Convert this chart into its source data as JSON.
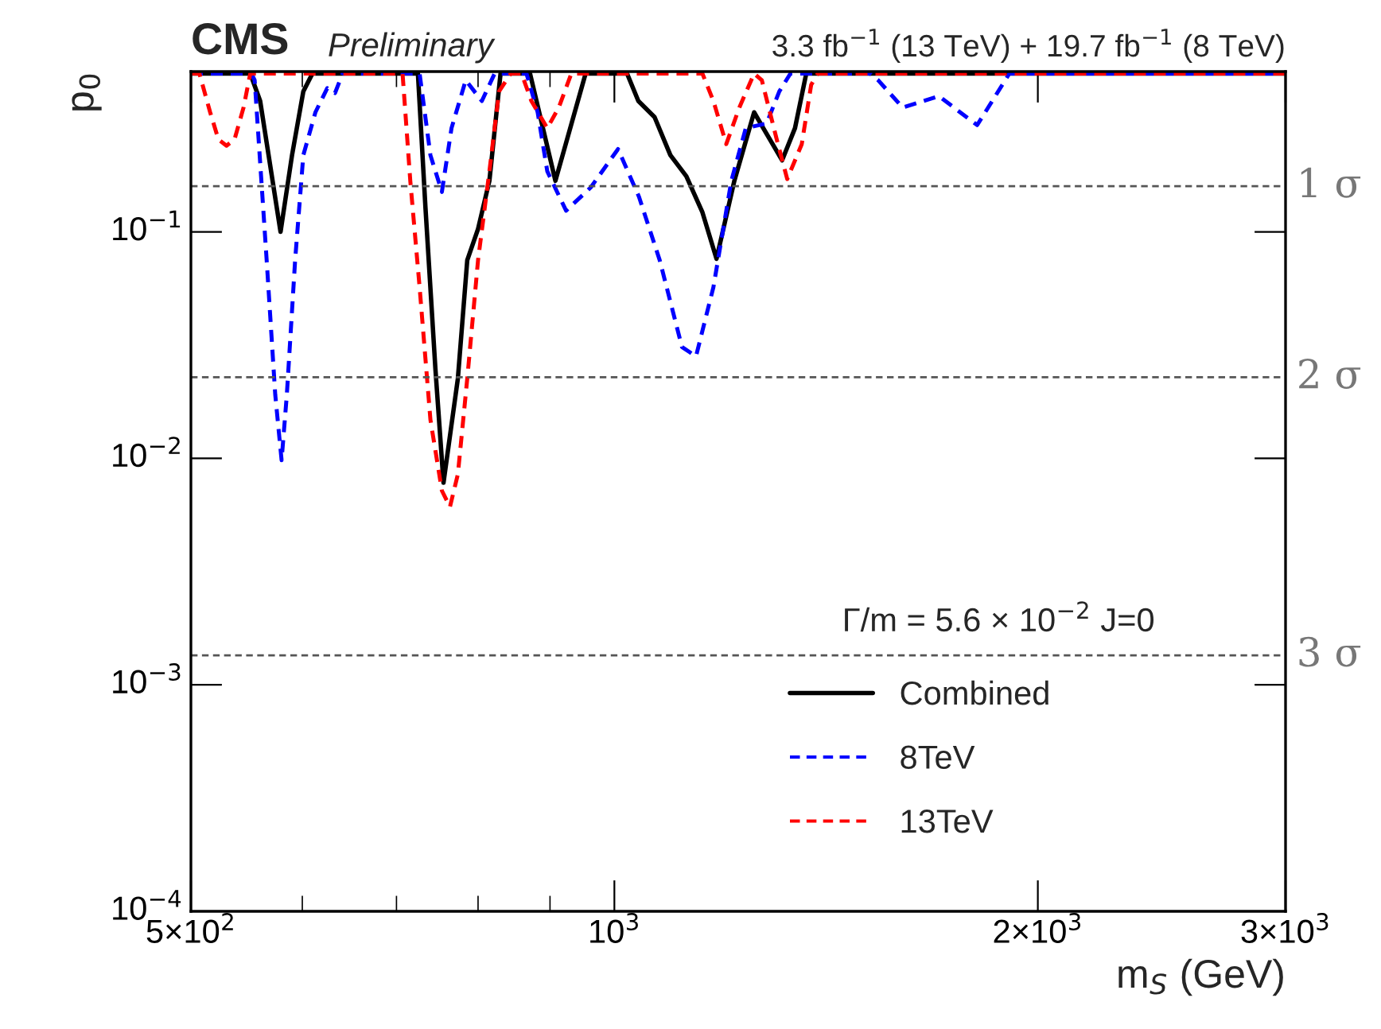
{
  "chart_data": {
    "type": "line",
    "xlabel": "m$_{S}$ (GeV)",
    "ylabel": "p$_{0}$",
    "annotations": [
      "CMS",
      "Preliminary",
      "3.3 fb$^{−1}$ (13 TeV) + 19.7 fb$^{−1}$ (8 TeV)",
      "Γ/m = 5.6 × 10$^{−2}$ J=0"
    ],
    "log": "xy",
    "xlim": [
      500,
      3000
    ],
    "ylim": [
      0.0001,
      0.51
    ],
    "xticks": [
      {
        "value": 500,
        "label": "5×10$^{2}$"
      },
      {
        "value": 1000,
        "label": "10$^{3}$"
      },
      {
        "value": 2000,
        "label": "2×10$^{3}$"
      },
      {
        "value": 3000,
        "label": "3×10$^{3}$"
      }
    ],
    "yticks": [
      {
        "value": 0.0001,
        "label": "10$^{−4}$"
      },
      {
        "value": 0.001,
        "label": "10$^{−3}$"
      },
      {
        "value": 0.01,
        "label": "10$^{−2}$"
      },
      {
        "value": 0.1,
        "label": "10$^{−1}$"
      }
    ],
    "grid": false,
    "legend": "bottom right",
    "ref_lines": [
      {
        "axis": "y",
        "value": 0.159,
        "label": "1 σ",
        "line_style": "dashed",
        "color": "#555555"
      },
      {
        "axis": "y",
        "value": 0.0228,
        "label": "2 σ",
        "line_style": "dashed",
        "color": "#555555"
      },
      {
        "axis": "y",
        "value": 0.00135,
        "label": "3 σ",
        "line_style": "dashed",
        "color": "#555555"
      }
    ],
    "series": [
      {
        "name": "Combined",
        "color": "#000000",
        "line_style": "solid",
        "x": [
          500,
          551,
          560,
          579,
          590,
          601,
          610,
          725,
          734,
          746,
          756,
          774,
          786,
          800,
          815,
          830,
          871,
          908,
          954,
          1021,
          1040,
          1068,
          1096,
          1125,
          1155,
          1182,
          1217,
          1257,
          1276,
          1316,
          1344,
          1369,
          3000
        ],
        "values": [
          0.5,
          0.5,
          0.378,
          0.1,
          0.218,
          0.417,
          0.5,
          0.5,
          0.128,
          0.025,
          0.0078,
          0.0225,
          0.075,
          0.103,
          0.168,
          0.5,
          0.5,
          0.168,
          0.5,
          0.5,
          0.378,
          0.321,
          0.218,
          0.176,
          0.122,
          0.076,
          0.168,
          0.337,
          0.287,
          0.207,
          0.287,
          0.5,
          0.5
        ]
      },
      {
        "name": "8TeV",
        "color": "#0000ff",
        "line_style": "dashed",
        "x": [
          500,
          552,
          555,
          566,
          574,
          580,
          585,
          593,
          601,
          613,
          625,
          633,
          641,
          727,
          740,
          754,
          766,
          784,
          805,
          822,
          866,
          882,
          896,
          924,
          962,
          1006,
          1041,
          1077,
          1117,
          1143,
          1176,
          1211,
          1240,
          1283,
          1310,
          1334,
          1520,
          1540,
          1603,
          1701,
          1811,
          1909,
          3000
        ],
        "values": [
          0.5,
          0.5,
          0.467,
          0.075,
          0.0191,
          0.0098,
          0.0191,
          0.075,
          0.218,
          0.337,
          0.431,
          0.41,
          0.5,
          0.5,
          0.218,
          0.15,
          0.287,
          0.467,
          0.378,
          0.5,
          0.5,
          0.337,
          0.185,
          0.124,
          0.157,
          0.232,
          0.143,
          0.075,
          0.031,
          0.0282,
          0.057,
          0.168,
          0.287,
          0.301,
          0.417,
          0.5,
          0.5,
          0.467,
          0.354,
          0.397,
          0.296,
          0.5,
          0.5
        ]
      },
      {
        "name": "13TeV",
        "color": "#ff0000",
        "line_style": "dashed",
        "x": [
          500,
          507,
          516,
          523,
          530,
          537,
          545,
          551,
          707,
          716,
          727,
          740,
          754,
          764,
          774,
          786,
          800,
          815,
          828,
          844,
          859,
          873,
          896,
          913,
          932,
          1155,
          1176,
          1201,
          1227,
          1257,
          1273,
          1307,
          1327,
          1359,
          1380,
          1395,
          3000
        ],
        "values": [
          0.5,
          0.5,
          0.337,
          0.256,
          0.24,
          0.256,
          0.354,
          0.5,
          0.5,
          0.168,
          0.057,
          0.0148,
          0.0072,
          0.0061,
          0.0085,
          0.0225,
          0.075,
          0.185,
          0.417,
          0.5,
          0.5,
          0.378,
          0.287,
          0.354,
          0.5,
          0.5,
          0.378,
          0.244,
          0.354,
          0.5,
          0.467,
          0.244,
          0.171,
          0.244,
          0.445,
          0.5,
          0.5
        ]
      }
    ]
  }
}
